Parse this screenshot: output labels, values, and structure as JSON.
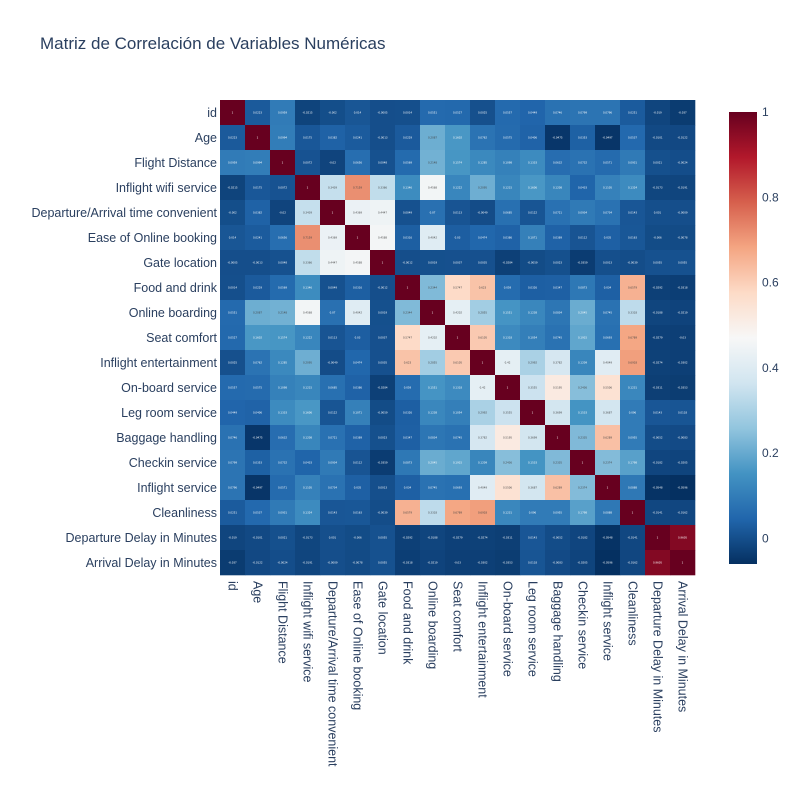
{
  "chart_data": {
    "type": "heatmap",
    "title": "Matriz de Correlación de Variables Numéricas",
    "variables": [
      "id",
      "Age",
      "Flight Distance",
      "Inflight wifi service",
      "Departure/Arrival time convenient",
      "Ease of Online booking",
      "Gate location",
      "Food and drink",
      "Online boarding",
      "Seat comfort",
      "Inflight entertainment",
      "On-board service",
      "Leg room service",
      "Baggage handling",
      "Checkin service",
      "Inflight service",
      "Cleanliness",
      "Departure Delay in Minutes",
      "Arrival Delay in Minutes"
    ],
    "matrix": [
      [
        1,
        0.0223,
        0.0959,
        -0.0215,
        -0.002,
        0.014,
        -0.0005,
        0.0014,
        0.0551,
        0.0527,
        0.0025,
        0.0557,
        0.0449,
        0.0746,
        0.0799,
        0.0796,
        0.0251,
        -0.019,
        -0.037
      ],
      [
        0.0223,
        1,
        0.0994,
        0.0175,
        0.0382,
        0.0241,
        -0.0013,
        0.0229,
        0.2087,
        0.1602,
        0.0762,
        0.0575,
        0.0406,
        -0.0475,
        0.0353,
        -0.0497,
        0.0537,
        -0.0101,
        -0.0122
      ],
      [
        0.0959,
        0.0994,
        1,
        0.0072,
        -0.02,
        0.0656,
        0.0048,
        0.0569,
        0.2148,
        0.1574,
        0.1285,
        0.1098,
        0.1333,
        0.0632,
        0.0732,
        0.0571,
        0.0931,
        0.0021,
        -0.0024
      ],
      [
        -0.0215,
        0.0175,
        0.0072,
        1,
        0.3439,
        0.7159,
        0.3366,
        0.1346,
        0.4568,
        0.1222,
        0.2095,
        0.1215,
        0.1606,
        0.1208,
        0.0433,
        0.1105,
        0.1324,
        -0.0173,
        -0.0191
      ],
      [
        -0.002,
        0.0382,
        -0.02,
        0.3439,
        1,
        0.4369,
        0.4447,
        0.0049,
        0.07,
        0.0113,
        -0.0049,
        0.0685,
        0.0122,
        0.0721,
        0.0934,
        0.0734,
        0.0143,
        0.001,
        -0.0009
      ],
      [
        0.014,
        0.0241,
        0.0656,
        0.7159,
        0.4369,
        1,
        0.4588,
        0.0316,
        0.4042,
        0.03,
        0.0474,
        0.0386,
        0.1071,
        0.0389,
        0.0112,
        0.035,
        0.0163,
        -0.006,
        -0.0078
      ],
      [
        -0.0005,
        -0.0013,
        0.0048,
        0.3366,
        0.4447,
        0.4588,
        1,
        -0.0012,
        0.0019,
        0.0037,
        0.0035,
        -0.0284,
        -0.0059,
        0.0023,
        -0.0359,
        0.0013,
        -0.0039,
        0.0055,
        0.0055
      ],
      [
        0.0014,
        0.0229,
        0.0569,
        0.1346,
        0.0049,
        0.0316,
        -0.0012,
        1,
        0.2344,
        0.5747,
        0.623,
        0.059,
        0.0326,
        0.0347,
        0.0873,
        0.034,
        0.6579,
        -0.0292,
        -0.0318
      ],
      [
        0.0551,
        0.2087,
        0.2148,
        0.4568,
        0.07,
        0.4042,
        0.0019,
        0.2344,
        1,
        0.4202,
        0.2855,
        0.1551,
        0.1238,
        0.0834,
        0.2045,
        0.0745,
        0.3318,
        -0.0188,
        -0.0219
      ],
      [
        0.0527,
        0.1602,
        0.1574,
        0.1222,
        0.0113,
        0.03,
        0.0037,
        0.5747,
        0.4202,
        1,
        0.6105,
        0.1318,
        0.1054,
        0.0745,
        0.1915,
        0.0693,
        0.6789,
        -0.0279,
        -0.03
      ],
      [
        0.0025,
        0.0762,
        0.1285,
        0.2095,
        -0.0049,
        0.0474,
        0.0035,
        0.623,
        0.2855,
        0.6105,
        1,
        0.42,
        0.2992,
        0.3782,
        0.1209,
        0.4049,
        0.6918,
        -0.0274,
        -0.0302
      ],
      [
        0.0557,
        0.0575,
        0.1098,
        0.1215,
        0.0685,
        0.0386,
        -0.0284,
        0.059,
        0.1551,
        0.1318,
        0.42,
        1,
        0.3555,
        0.5195,
        0.2436,
        0.5506,
        0.1231,
        -0.0311,
        -0.0353
      ],
      [
        0.0449,
        0.0406,
        0.1333,
        0.1606,
        0.0122,
        0.1071,
        -0.0059,
        0.0326,
        0.1238,
        0.1054,
        0.2992,
        0.3555,
        1,
        0.3699,
        0.1533,
        0.3687,
        0.096,
        0.0143,
        0.0118
      ],
      [
        0.0746,
        -0.0475,
        0.0632,
        0.1208,
        0.0721,
        0.0389,
        0.0023,
        0.0347,
        0.0834,
        0.0745,
        0.3782,
        0.5195,
        0.3699,
        1,
        0.2335,
        0.6289,
        0.0955,
        -0.0052,
        -0.0083
      ],
      [
        0.0799,
        0.0353,
        0.0732,
        0.0433,
        0.0934,
        0.0112,
        -0.0359,
        0.0873,
        0.2045,
        0.1915,
        0.1209,
        0.2436,
        0.1533,
        0.2335,
        1,
        0.2374,
        0.1798,
        -0.0182,
        -0.0205
      ],
      [
        0.0796,
        -0.0497,
        0.0571,
        0.1105,
        0.0734,
        0.035,
        0.0013,
        0.034,
        0.0745,
        0.0693,
        0.4049,
        0.5506,
        0.3687,
        0.6289,
        0.2374,
        1,
        0.0888,
        -0.0548,
        -0.0596
      ],
      [
        0.0251,
        0.0537,
        0.0931,
        0.1324,
        0.0143,
        0.0163,
        -0.0039,
        0.6579,
        0.3318,
        0.6789,
        0.6918,
        0.1231,
        0.096,
        0.0955,
        0.1798,
        0.0888,
        1,
        -0.0141,
        -0.0162
      ],
      [
        -0.019,
        -0.0101,
        0.0021,
        -0.0173,
        0.001,
        -0.006,
        0.0055,
        -0.0292,
        -0.0188,
        -0.0279,
        -0.0274,
        -0.0311,
        0.0143,
        -0.0052,
        -0.0182,
        -0.0548,
        -0.0141,
        1,
        0.9605
      ],
      [
        -0.037,
        -0.0122,
        -0.0024,
        -0.0191,
        -0.0009,
        -0.0078,
        0.0055,
        -0.0318,
        -0.0219,
        -0.03,
        -0.0302,
        -0.0353,
        0.0118,
        -0.0083,
        -0.0205,
        -0.0596,
        -0.0162,
        0.9605,
        1
      ]
    ],
    "colorscale": "RdBu_r",
    "zmin": -0.06,
    "zmax": 1,
    "colorbar_ticks": [
      "0",
      "0.2",
      "0.4",
      "0.6",
      "0.8",
      "1"
    ],
    "colorbar_tick_values": [
      0,
      0.2,
      0.4,
      0.6,
      0.8,
      1
    ]
  }
}
